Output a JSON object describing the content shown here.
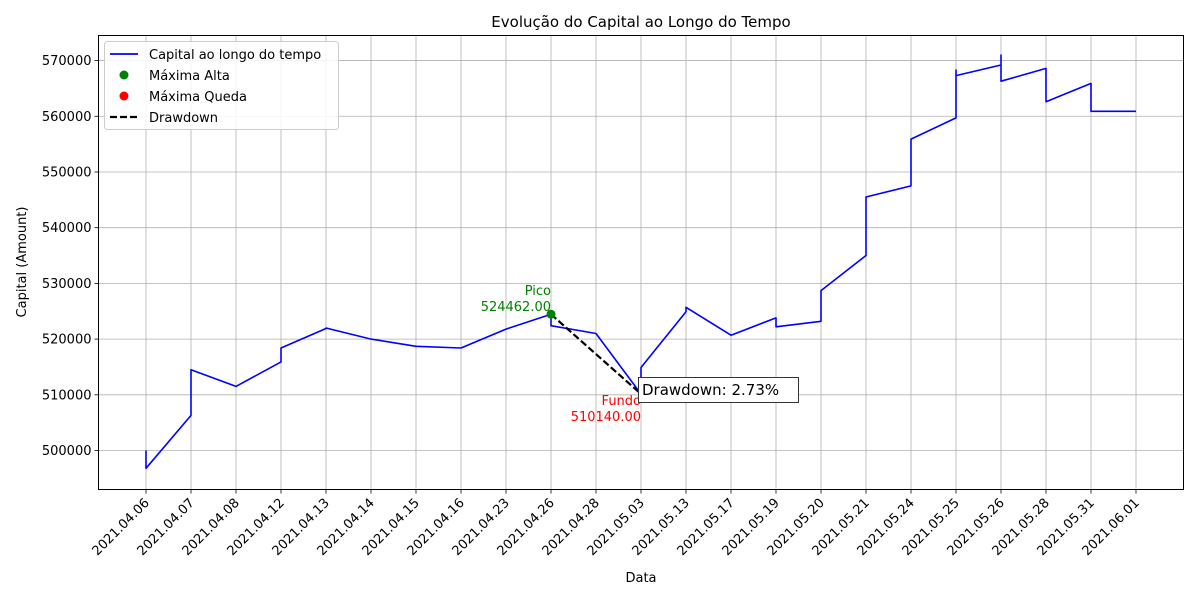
{
  "chart_data": {
    "type": "line",
    "title": "Evolução do Capital ao Longo do Tempo",
    "xlabel": "Data",
    "ylabel": "Capital (Amount)",
    "categories": [
      "2021.04.06",
      "2021.04.07",
      "2021.04.08",
      "2021.04.12",
      "2021.04.13",
      "2021.04.14",
      "2021.04.15",
      "2021.04.16",
      "2021.04.23",
      "2021.04.26",
      "2021.04.28",
      "2021.05.03",
      "2021.05.13",
      "2021.05.17",
      "2021.05.19",
      "2021.05.20",
      "2021.05.21",
      "2021.05.24",
      "2021.05.25",
      "2021.05.26",
      "2021.05.28",
      "2021.05.31",
      "2021.06.01"
    ],
    "ylim": [
      493000,
      574500
    ],
    "yticks": [
      500000,
      510000,
      520000,
      530000,
      540000,
      550000,
      560000,
      570000
    ],
    "grid": true,
    "legend_position": "upper-left",
    "series": [
      {
        "name": "Capital ao longo do tempo",
        "color": "#0000ff",
        "points": [
          [
            0,
            500000
          ],
          [
            0,
            496800
          ],
          [
            1,
            506300
          ],
          [
            1,
            514500
          ],
          [
            2,
            511500
          ],
          [
            3,
            515900
          ],
          [
            3,
            518400
          ],
          [
            4,
            521900
          ],
          [
            4,
            522000
          ],
          [
            5,
            520000
          ],
          [
            6,
            518700
          ],
          [
            7,
            518400
          ],
          [
            8,
            521800
          ],
          [
            9,
            524462
          ],
          [
            9,
            522400
          ],
          [
            10,
            521000
          ],
          [
            11,
            510140
          ],
          [
            11,
            514900
          ],
          [
            12,
            524900
          ],
          [
            12,
            525700
          ],
          [
            13,
            520700
          ],
          [
            14,
            523800
          ],
          [
            14,
            522200
          ],
          [
            15,
            523200
          ],
          [
            15,
            528700
          ],
          [
            16,
            535000
          ],
          [
            16,
            545500
          ],
          [
            17,
            547500
          ],
          [
            17,
            555900
          ],
          [
            18,
            559700
          ],
          [
            18,
            568300
          ],
          [
            18,
            567300
          ],
          [
            19,
            569200
          ],
          [
            19,
            571000
          ],
          [
            19,
            566300
          ],
          [
            20,
            568600
          ],
          [
            20,
            562600
          ],
          [
            21,
            565900
          ],
          [
            21,
            560900
          ],
          [
            22,
            560900
          ]
        ]
      }
    ],
    "peak": {
      "legend": "Máxima Alta",
      "label": "Pico",
      "value_text": "524462.00",
      "x": 9,
      "y": 524462,
      "color": "#008000"
    },
    "trough": {
      "legend": "Máxima Queda",
      "label": "Fundo",
      "value_text": "510140.00",
      "x": 11,
      "y": 510140,
      "color": "#ff0000"
    },
    "drawdown": {
      "legend": "Drawdown",
      "text": "Drawdown: 2.73%",
      "color": "#000000"
    }
  }
}
